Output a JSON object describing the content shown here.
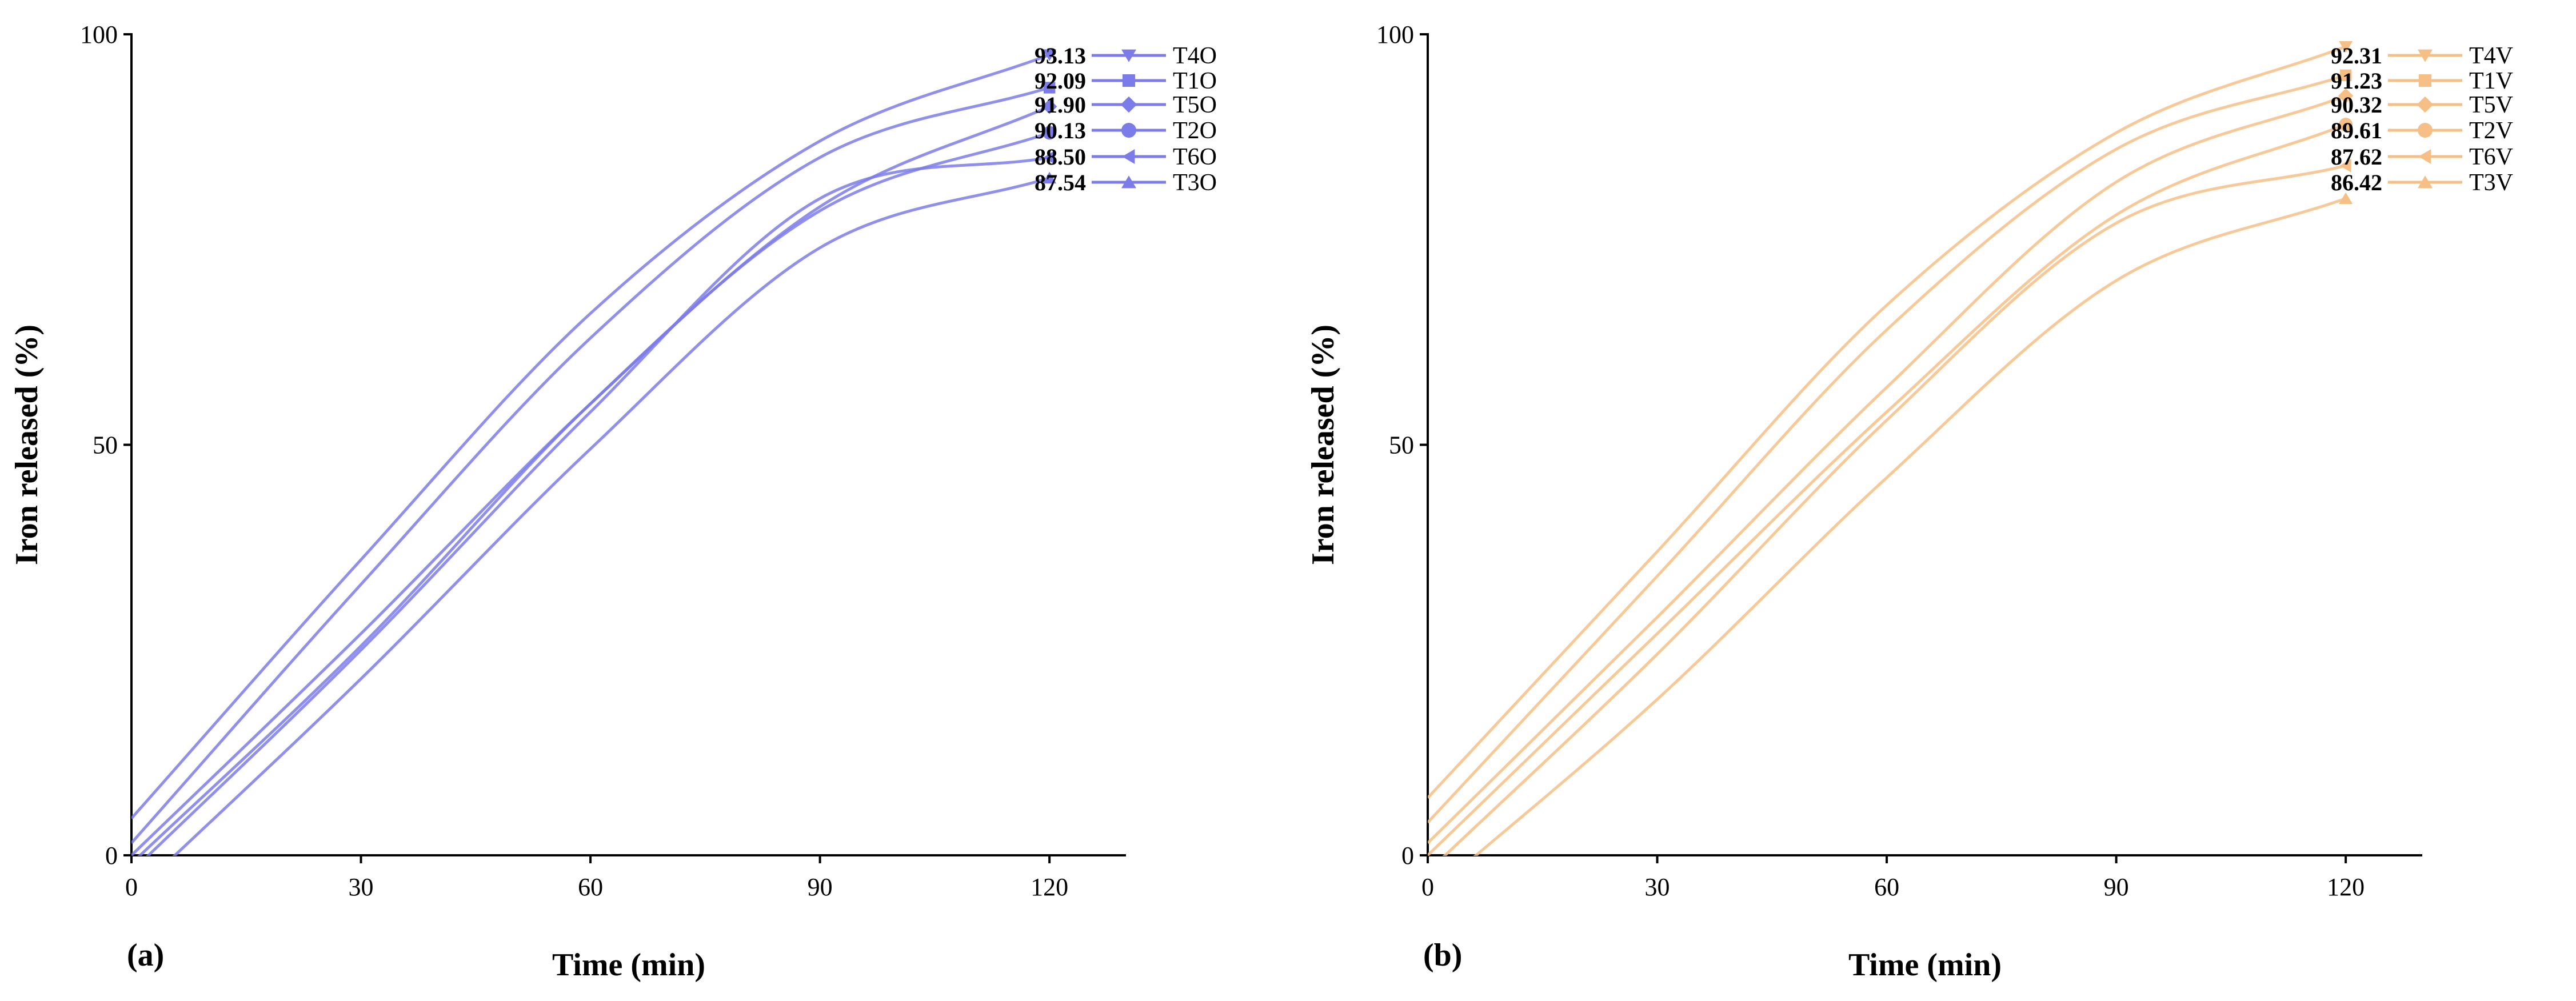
{
  "chart_data": [
    {
      "type": "line",
      "panel_label": "(a)",
      "xlabel": "Time (min)",
      "ylabel": "Iron released (%)",
      "xlim": [
        0,
        130
      ],
      "ylim": [
        0,
        100
      ],
      "xticks": [
        "0",
        "30",
        "60",
        "90",
        "120"
      ],
      "yticks": [
        "0",
        "50",
        "100"
      ],
      "color": "#7b7bea",
      "series": [
        {
          "name": "T4O",
          "marker": "triangle-down",
          "end_label": "93.13",
          "x": [
            0,
            30,
            60,
            90,
            120
          ],
          "y": [
            4.5,
            36,
            66,
            87,
            97.5
          ]
        },
        {
          "name": "T1O",
          "marker": "square",
          "end_label": "92.09",
          "x": [
            0,
            30,
            60,
            90,
            120
          ],
          "y": [
            1.5,
            33,
            63,
            85,
            93.5
          ]
        },
        {
          "name": "T5O",
          "marker": "diamond",
          "end_label": "91.90",
          "x": [
            0,
            30,
            60,
            90,
            120
          ],
          "y": [
            0,
            27,
            55,
            79,
            91.2
          ]
        },
        {
          "name": "T2O",
          "marker": "circle",
          "end_label": "90.13",
          "x": [
            0,
            30,
            60,
            90,
            120
          ],
          "y": [
            -1,
            25.5,
            55,
            78.5,
            88
          ]
        },
        {
          "name": "T6O",
          "marker": "triangle-left",
          "end_label": "88.50",
          "x": [
            0,
            30,
            60,
            90,
            120
          ],
          "y": [
            -2,
            25,
            54,
            80,
            85
          ]
        },
        {
          "name": "T3O",
          "marker": "triangle-up",
          "end_label": "87.54",
          "x": [
            0,
            30,
            60,
            90,
            120
          ],
          "y": [
            -5,
            21.5,
            49.5,
            74,
            82.5
          ]
        }
      ]
    },
    {
      "type": "line",
      "panel_label": "(b)",
      "xlabel": "Time (min)",
      "ylabel": "Iron released (%)",
      "xlim": [
        0,
        130
      ],
      "ylim": [
        0,
        100
      ],
      "xticks": [
        "0",
        "30",
        "60",
        "90",
        "120"
      ],
      "yticks": [
        "0",
        "50",
        "100"
      ],
      "color": "#f6bf86",
      "series": [
        {
          "name": "T4V",
          "marker": "triangle-down",
          "end_label": "92.31",
          "x": [
            0,
            30,
            60,
            90,
            120
          ],
          "y": [
            7,
            37,
            67,
            88,
            98.5
          ]
        },
        {
          "name": "T1V",
          "marker": "square",
          "end_label": "91.23",
          "x": [
            0,
            30,
            60,
            90,
            120
          ],
          "y": [
            4,
            34,
            64,
            86,
            95
          ]
        },
        {
          "name": "T5V",
          "marker": "diamond",
          "end_label": "90.32",
          "x": [
            0,
            30,
            60,
            90,
            120
          ],
          "y": [
            1.5,
            29,
            57,
            82,
            92.5
          ]
        },
        {
          "name": "T2V",
          "marker": "circle",
          "end_label": "89.61",
          "x": [
            0,
            30,
            60,
            90,
            120
          ],
          "y": [
            0,
            27,
            54,
            78,
            89
          ]
        },
        {
          "name": "T6V",
          "marker": "triangle-left",
          "end_label": "87.62",
          "x": [
            0,
            30,
            60,
            90,
            120
          ],
          "y": [
            -2,
            24.5,
            53,
            77,
            84
          ]
        },
        {
          "name": "T3V",
          "marker": "triangle-up",
          "end_label": "86.42",
          "x": [
            0,
            30,
            60,
            90,
            120
          ],
          "y": [
            -5,
            19,
            46,
            70,
            80
          ]
        }
      ]
    }
  ]
}
